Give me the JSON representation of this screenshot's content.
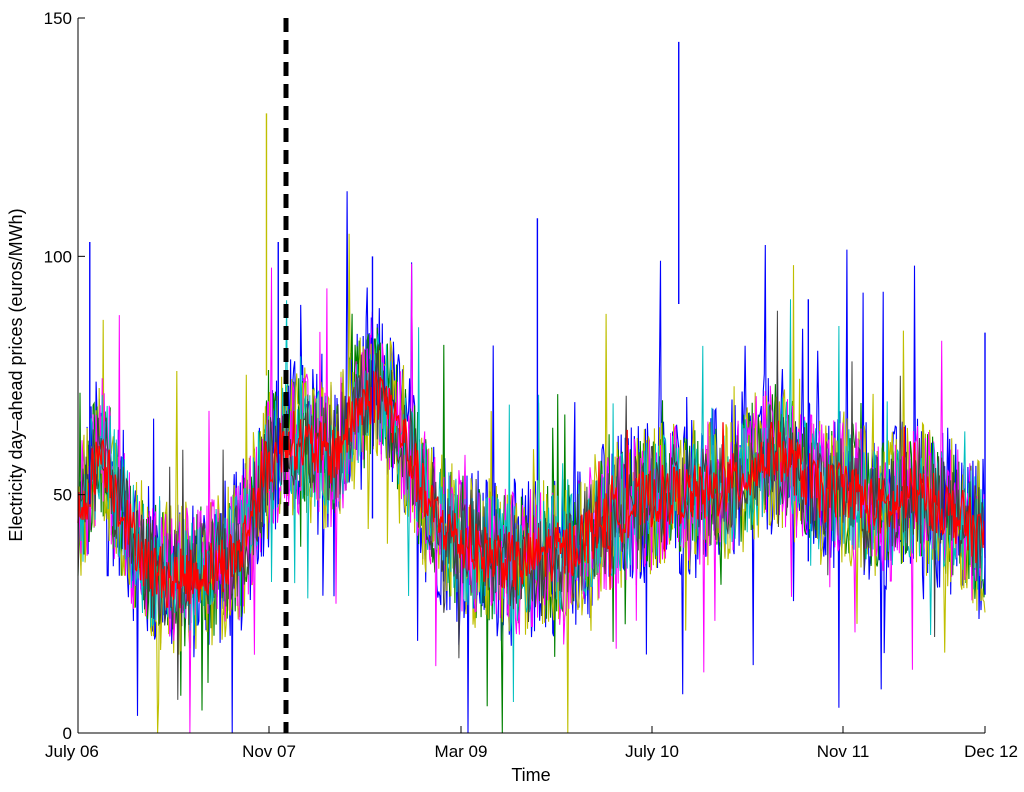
{
  "chart_data": {
    "type": "line",
    "title": "",
    "xlabel": "Time",
    "ylabel": "Electricity day–ahead prices (euros/MWh)",
    "x_tick_labels": [
      "July 06",
      "Nov 07",
      "Mar 09",
      "July 10",
      "Nov 11",
      "Dec 12"
    ],
    "y_tick_labels": [
      "0",
      "50",
      "100",
      "150"
    ],
    "ylim": [
      0,
      150
    ],
    "grid": false,
    "legend": "none",
    "event_marker": {
      "style": "dashed vertical line",
      "color": "#000000",
      "approx_date": "Dec 07"
    },
    "series_colors": [
      "#0000ff",
      "#008000",
      "#bfbf00",
      "#ff00ff",
      "#00bfbf",
      "#404040",
      "#ff0000"
    ],
    "approx_profile": {
      "description": "approximate smoothed central price level over time (euros/MWh)",
      "x": [
        "July 06",
        "Sep 06",
        "Nov 06",
        "Jan 07",
        "Mar 07",
        "May 07",
        "Jul 07",
        "Sep 07",
        "Nov 07",
        "Dec 07",
        "Feb 08",
        "Apr 08",
        "Jun 08",
        "Aug 08",
        "Oct 08",
        "Dec 08",
        "Feb 09",
        "Apr 09",
        "Jun 09",
        "Aug 09",
        "Oct 09",
        "Dec 09",
        "Feb 10",
        "Apr 10",
        "Jun 10",
        "Aug 10",
        "Oct 10",
        "Dec 10",
        "Feb 11",
        "Apr 11",
        "Jun 11",
        "Aug 11",
        "Oct 11",
        "Dec 11",
        "Feb 12",
        "Apr 12",
        "Jun 12",
        "Aug 12",
        "Oct 12",
        "Dec 12"
      ],
      "y": [
        45,
        60,
        45,
        35,
        32,
        33,
        35,
        38,
        55,
        62,
        60,
        58,
        68,
        72,
        62,
        48,
        42,
        38,
        37,
        35,
        38,
        38,
        42,
        45,
        48,
        50,
        50,
        50,
        52,
        55,
        60,
        55,
        50,
        52,
        48,
        47,
        50,
        48,
        45,
        40
      ]
    },
    "peaks": [
      {
        "x": "Aug 06",
        "y": 103
      },
      {
        "x": "Nov 07",
        "y": 130
      },
      {
        "x": "Dec 07",
        "y": 103
      },
      {
        "x": "Aug 08",
        "y": 100
      },
      {
        "x": "Oct 09",
        "y": 108
      },
      {
        "x": "Oct 10",
        "y": 145
      },
      {
        "x": "Sep 11",
        "y": 91
      },
      {
        "x": "Dec 12",
        "y": 84
      }
    ]
  }
}
